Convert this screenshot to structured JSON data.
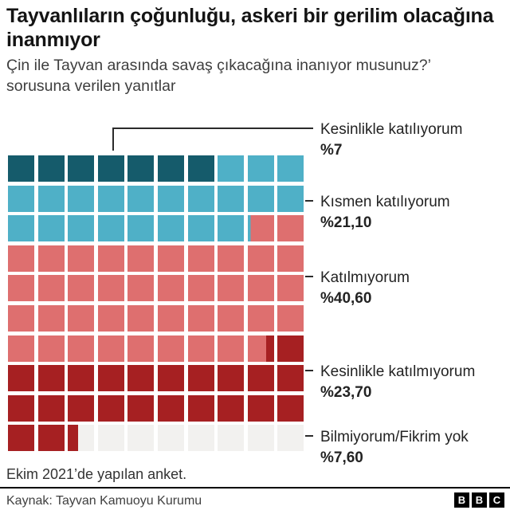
{
  "chart_data": {
    "type": "waffle",
    "title": "Tayvanlıların çoğunluğu, askeri bir gerilim olacağına inanmıyor",
    "subtitle": "Çin ile Tayvan arasında savaş çıkacağına inanıyor musunuz?’ sorusuna verilen yanıtlar",
    "note": "Ekim 2021’de yapılan anket.",
    "grid": {
      "rows": 10,
      "cols": 10,
      "total": 100
    },
    "legend_position": "right",
    "series": [
      {
        "name": "Kesinlikle katılıyorum",
        "value": 7,
        "display_value": "%7",
        "color": "#155b6b"
      },
      {
        "name": "Kısmen katılıyorum",
        "value": 21.1,
        "display_value": "%21,10",
        "color": "#4fb0c7"
      },
      {
        "name": "Katılmıyorum",
        "value": 40.6,
        "display_value": "%40,60",
        "color": "#de6f6f"
      },
      {
        "name": "Kesinlikle katılmıyorum",
        "value": 23.7,
        "display_value": "%23,70",
        "color": "#a62022"
      },
      {
        "name": "Bilmiyorum/Fikrim yok",
        "value": 7.6,
        "display_value": "%7,60",
        "color": "#f2f1ef"
      }
    ]
  },
  "footer": {
    "source": "Kaynak: Tayvan Kamuoyu Kurumu",
    "logo_letters": {
      "b1": "B",
      "b2": "B",
      "b3": "C"
    }
  }
}
